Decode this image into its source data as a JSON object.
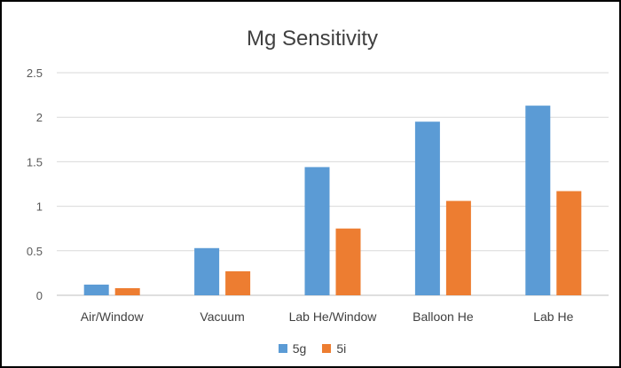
{
  "chart_data": {
    "type": "bar",
    "title": "Mg Sensitivity",
    "xlabel": "",
    "ylabel": "",
    "categories": [
      "Air/Window",
      "Vacuum",
      "Lab He/Window",
      "Balloon He",
      "Lab He"
    ],
    "series": [
      {
        "name": "5g",
        "color": "#5B9BD5",
        "values": [
          0.12,
          0.53,
          1.44,
          1.95,
          2.13
        ]
      },
      {
        "name": "5i",
        "color": "#ED7D31",
        "values": [
          0.08,
          0.27,
          0.75,
          1.06,
          1.17
        ]
      }
    ],
    "ylim": [
      0,
      2.5
    ],
    "yticks": [
      "0",
      "0.5",
      "1",
      "1.5",
      "2",
      "2.5"
    ],
    "grid": true,
    "legend": "bottom"
  }
}
